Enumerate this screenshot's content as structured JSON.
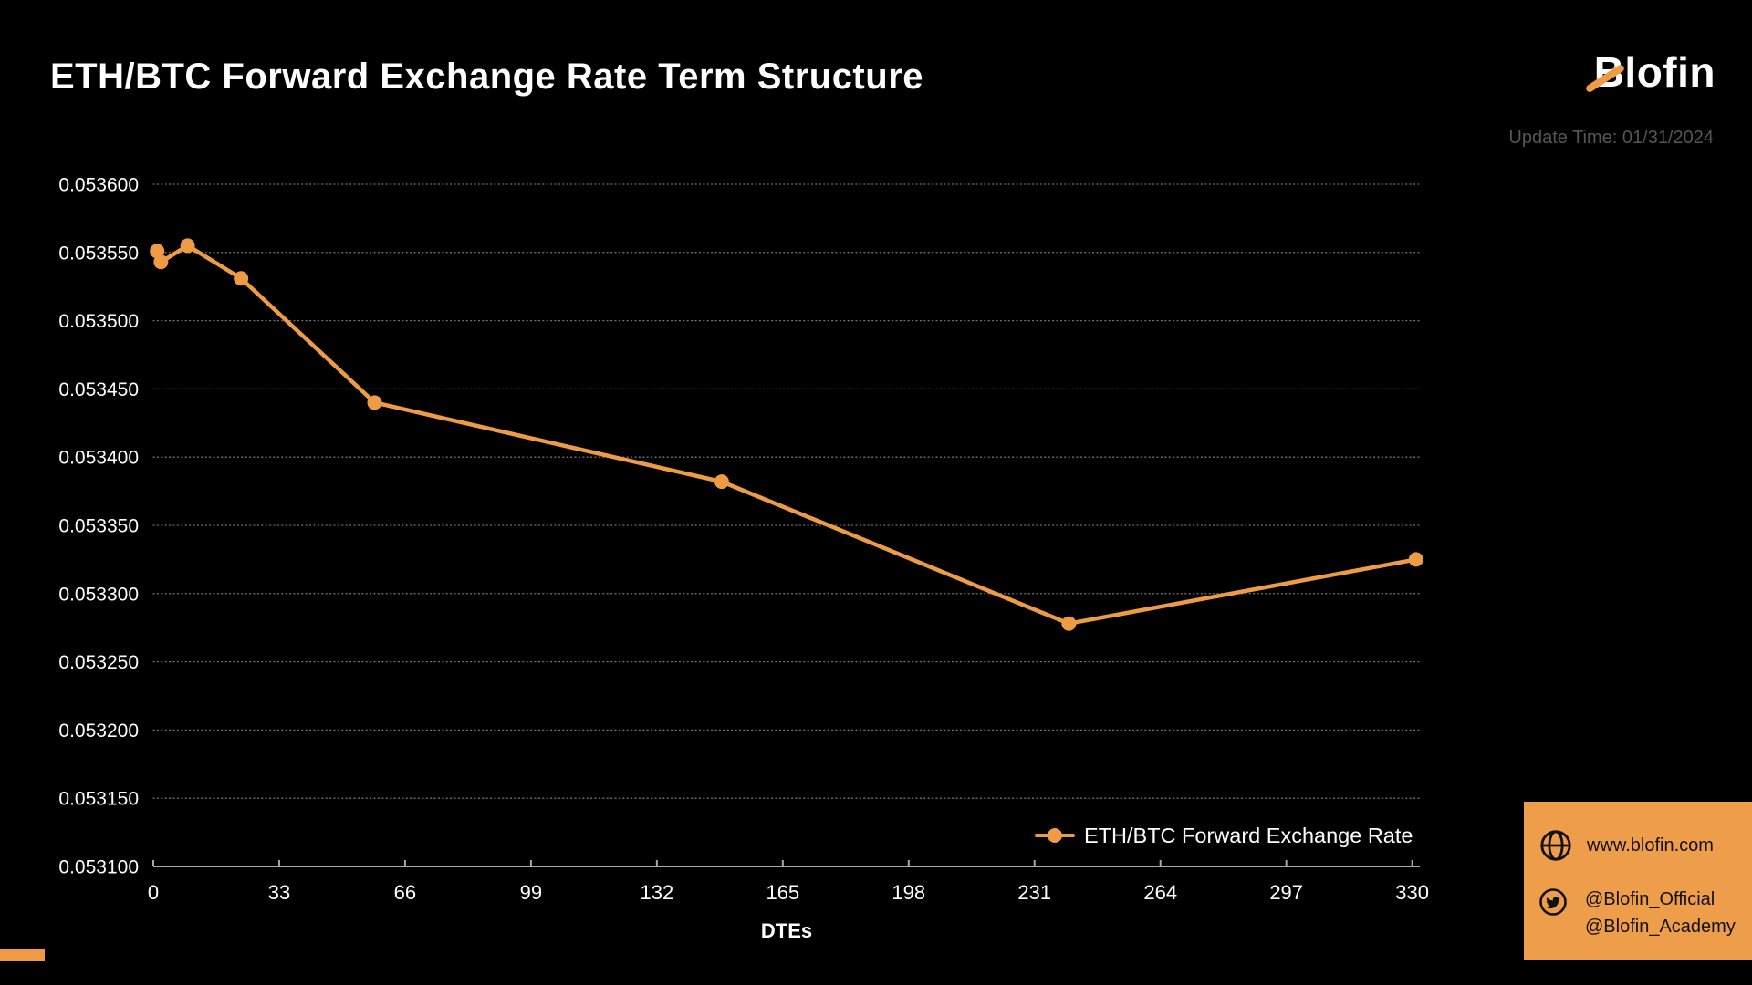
{
  "colors": {
    "background": "#000000",
    "accent_orange": "#ED9C45",
    "footer_box_orange": "#EE9D4B",
    "grid_gray": "#8F8F8F",
    "axis_gray": "#A8A8A8",
    "update_time_gray": "#555555",
    "text_white": "#FFFFFF"
  },
  "header": {
    "title": "ETH/BTC Forward Exchange Rate Term Structure",
    "logo_text": "Blofin",
    "update_time": "Update Time: 01/31/2024"
  },
  "chart_data": {
    "type": "line",
    "title": "ETH/BTC Forward Exchange Rate Term Structure",
    "xlabel": "DTEs",
    "ylabel": "",
    "xlim": [
      0,
      332
    ],
    "ylim": [
      0.0531,
      0.0536
    ],
    "x_ticks": [
      0,
      33,
      66,
      99,
      132,
      165,
      198,
      231,
      264,
      297,
      330
    ],
    "y_tick_labels": [
      "0.053600",
      "0.053550",
      "0.053500",
      "0.053450",
      "0.053400",
      "0.053350",
      "0.053300",
      "0.053250",
      "0.053200",
      "0.053150",
      "0.053100"
    ],
    "grid": "horizontal-dotted",
    "legend_position": "lower right",
    "series": [
      {
        "name": "ETH/BTC Forward Exchange Rate",
        "color": "#ED9C45",
        "points": [
          {
            "dte": 1,
            "rate": 0.053551
          },
          {
            "dte": 2,
            "rate": 0.053543
          },
          {
            "dte": 9,
            "rate": 0.053555
          },
          {
            "dte": 23,
            "rate": 0.053531
          },
          {
            "dte": 58,
            "rate": 0.05344
          },
          {
            "dte": 149,
            "rate": 0.053382
          },
          {
            "dte": 240,
            "rate": 0.053278
          },
          {
            "dte": 331,
            "rate": 0.053325
          }
        ]
      }
    ]
  },
  "footer": {
    "website": "www.blofin.com",
    "handles": [
      "@Blofin_Official",
      "@Blofin_Academy"
    ],
    "icons": [
      "globe-icon",
      "twitter-icon"
    ]
  }
}
